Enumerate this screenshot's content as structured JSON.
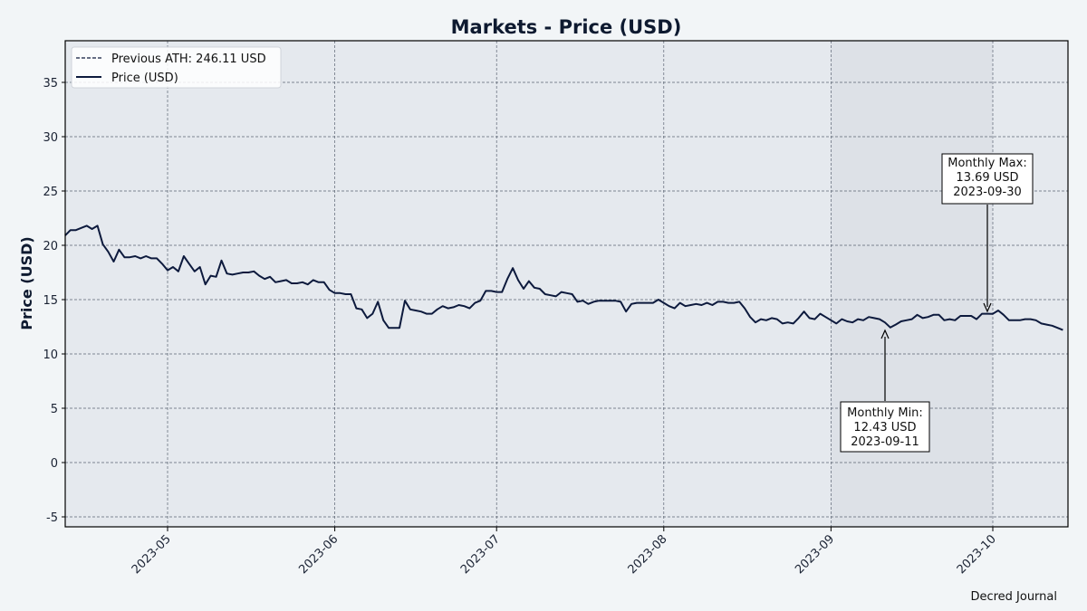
{
  "chart_data": {
    "type": "line",
    "title": "Markets - Price (USD)",
    "xlabel": "",
    "ylabel": "Price (USD)",
    "ylim": [
      -6,
      39
    ],
    "yticks": [
      -5,
      0,
      5,
      10,
      15,
      20,
      25,
      30,
      35
    ],
    "xticks": [
      "2023-05",
      "2023-06",
      "2023-07",
      "2023-08",
      "2023-09",
      "2023-10"
    ],
    "x_start": "2023-04-12",
    "x_end": "2023-10-13",
    "grid": true,
    "legend_position": "upper left",
    "legend": [
      {
        "label": "Previous ATH: 246.11 USD",
        "style": "dashed"
      },
      {
        "label": "Price (USD)",
        "style": "solid"
      }
    ],
    "highlight_region": {
      "start": "2023-09-01",
      "end": "2023-09-30"
    },
    "series": [
      {
        "name": "Price (USD)",
        "color": "#0d1a3d",
        "start_date": "2023-04-12",
        "step_days": 1,
        "values": [
          20.9,
          21.4,
          21.4,
          21.6,
          21.8,
          21.5,
          21.8,
          20.1,
          19.4,
          18.5,
          19.6,
          18.9,
          18.9,
          19.0,
          18.8,
          19.0,
          18.8,
          18.8,
          18.3,
          17.7,
          18.0,
          17.6,
          19.0,
          18.3,
          17.6,
          18.0,
          16.4,
          17.2,
          17.1,
          18.6,
          17.4,
          17.3,
          17.4,
          17.5,
          17.5,
          17.6,
          17.2,
          16.9,
          17.1,
          16.6,
          16.7,
          16.8,
          16.5,
          16.5,
          16.6,
          16.4,
          16.8,
          16.6,
          16.6,
          15.9,
          15.6,
          15.6,
          15.5,
          15.5,
          14.2,
          14.1,
          13.3,
          13.7,
          14.8,
          13.1,
          12.4,
          12.4,
          12.4,
          14.9,
          14.1,
          14.0,
          13.9,
          13.7,
          13.7,
          14.1,
          14.4,
          14.2,
          14.3,
          14.5,
          14.4,
          14.2,
          14.7,
          14.9,
          15.8,
          15.8,
          15.7,
          15.7,
          16.9,
          17.9,
          16.8,
          16.0,
          16.7,
          16.1,
          16.0,
          15.5,
          15.4,
          15.3,
          15.7,
          15.6,
          15.5,
          14.8,
          14.9,
          14.6,
          14.8,
          14.9,
          14.9,
          14.9,
          14.9,
          14.8,
          13.9,
          14.6,
          14.7,
          14.7,
          14.7,
          14.7,
          15.0,
          14.7,
          14.4,
          14.2,
          14.7,
          14.4,
          14.5,
          14.6,
          14.5,
          14.7,
          14.5,
          14.8,
          14.8,
          14.7,
          14.7,
          14.8,
          14.2,
          13.4,
          12.9,
          13.2,
          13.1,
          13.3,
          13.2,
          12.8,
          12.9,
          12.8,
          13.3,
          13.9,
          13.3,
          13.2,
          13.7,
          13.4,
          13.1,
          12.8,
          13.2,
          13.0,
          12.9,
          13.2,
          13.1,
          13.4,
          13.3,
          13.2,
          12.9,
          12.43,
          12.7,
          13.0,
          13.1,
          13.2,
          13.6,
          13.3,
          13.4,
          13.6,
          13.6,
          13.1,
          13.2,
          13.1,
          13.5,
          13.5,
          13.5,
          13.2,
          13.7,
          13.7,
          13.69,
          14.0,
          13.6,
          13.1,
          13.1,
          13.1,
          13.2,
          13.2,
          13.1,
          12.8,
          12.7,
          12.6,
          12.4,
          12.2
        ]
      },
      {
        "name": "Previous ATH: 246.11 USD",
        "value": 246.11,
        "note": "off-scale (above ylim)"
      }
    ],
    "annotations": [
      {
        "label": "Monthly Max:",
        "value": "13.69 USD",
        "date": "2023-09-30"
      },
      {
        "label": "Monthly Min:",
        "value": "12.43 USD",
        "date": "2023-09-11"
      }
    ]
  },
  "footer": {
    "credit": "Decred Journal"
  },
  "colors": {
    "background": "#f2f5f7",
    "plot_bg": "#e5e9ee",
    "highlight_bg": "#dde1e7",
    "line": "#0d1a3d",
    "grid": "#5b6473",
    "title": "#0e1a30"
  }
}
